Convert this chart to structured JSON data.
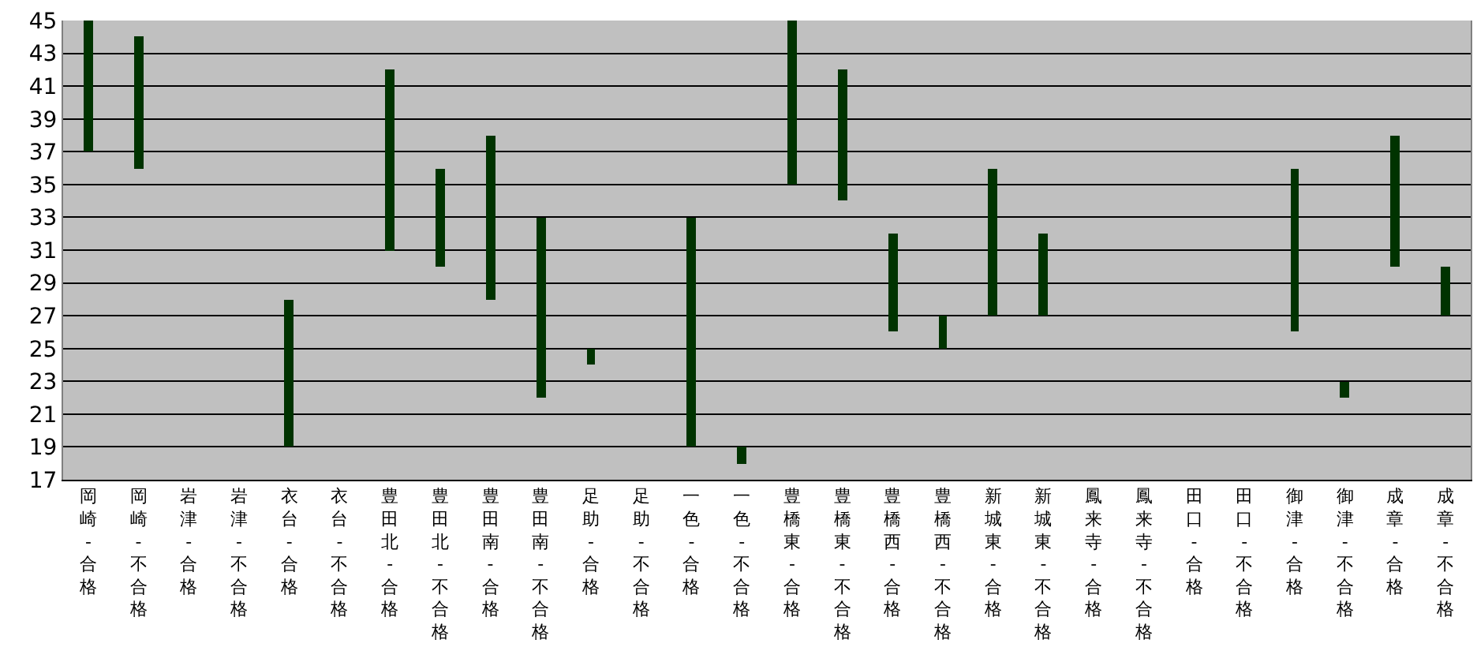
{
  "chart_data": {
    "type": "bar",
    "categories": [
      "岡崎-合格",
      "岡崎-不合格",
      "岩津-合格",
      "岩津-不合格",
      "衣台-合格",
      "衣台-不合格",
      "豊田北-合格",
      "豊田北-不合格",
      "豊田南-合格",
      "豊田南-不合格",
      "足助-合格",
      "足助-不合格",
      "一色-合格",
      "一色-不合格",
      "豊橋東-合格",
      "豊橋東-不合格",
      "豊橋西-合格",
      "豊橋西-不合格",
      "新城東-合格",
      "新城東-不合格",
      "鳳来寺-合格",
      "鳳来寺-不合格",
      "田口-合格",
      "田口-不合格",
      "御津-合格",
      "御津-不合格",
      "成章-合格",
      "成章-不合格"
    ],
    "base": [
      37,
      36,
      null,
      null,
      19,
      null,
      31,
      30,
      28,
      22,
      24,
      null,
      19,
      18,
      35,
      34,
      26,
      25,
      27,
      27,
      null,
      null,
      null,
      null,
      26,
      22,
      30,
      27
    ],
    "values": [
      8,
      8,
      null,
      null,
      9,
      null,
      11,
      6,
      10,
      11,
      1,
      null,
      14,
      1,
      10,
      8,
      6,
      2,
      9,
      5,
      null,
      null,
      null,
      null,
      10,
      1,
      8,
      3
    ],
    "color": "#003300",
    "ylim": [
      17,
      45
    ],
    "yticks": [
      17,
      19,
      21,
      23,
      25,
      27,
      29,
      31,
      33,
      35,
      37,
      39,
      41,
      43,
      45
    ],
    "grid": "y"
  }
}
